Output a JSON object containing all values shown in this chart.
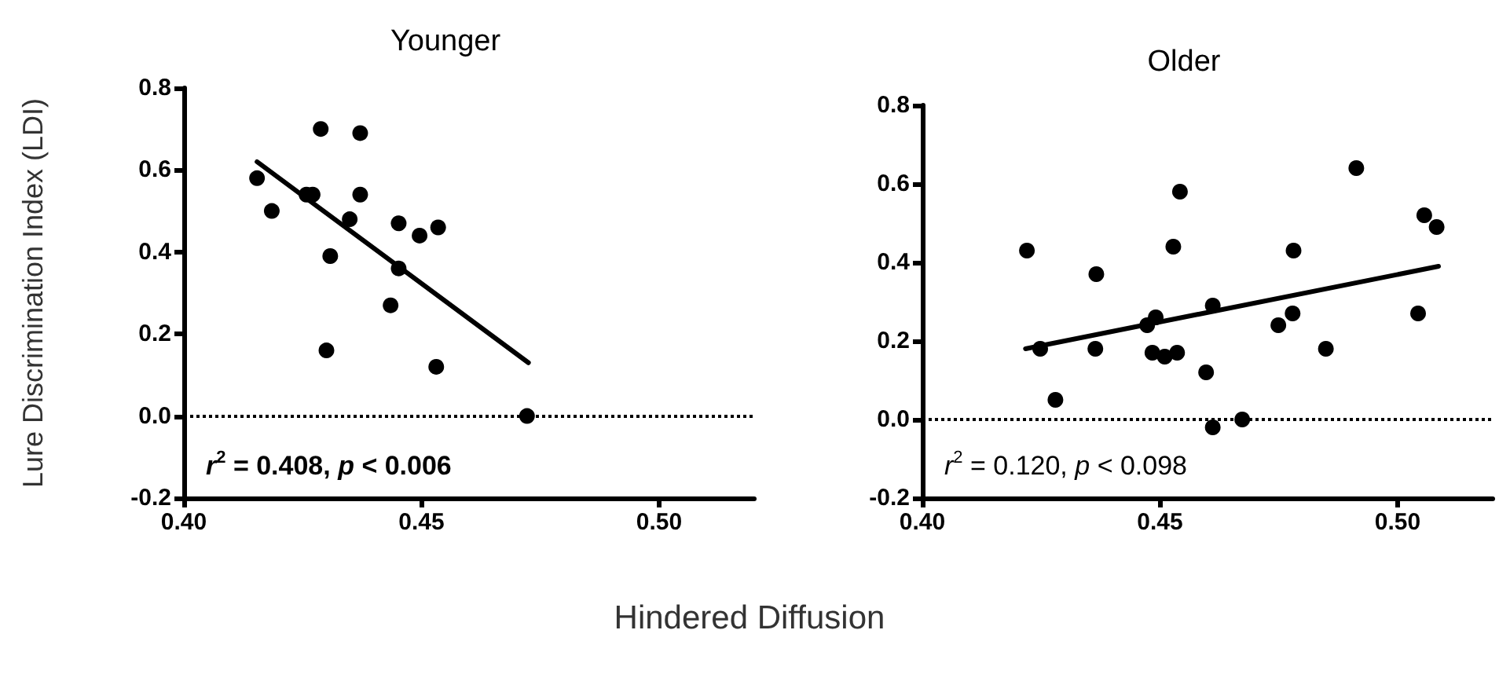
{
  "chart_data": [
    {
      "type": "scatter",
      "title": "Younger",
      "ylabel": "Lure Discrimination Index (LDI)",
      "xlabel": "Hindered Diffusion",
      "annotations": [
        "r$^{2}$ = 0.408, p < 0.006"
      ],
      "series": [
        {
          "color": "#000000",
          "marker": "circle",
          "x": [
            0.4154,
            0.4185,
            0.4258,
            0.4271,
            0.4288,
            0.43,
            0.4308,
            0.4349,
            0.4371,
            0.4371,
            0.4452,
            0.4452,
            0.4435,
            0.4496,
            0.4535,
            0.4531,
            0.4722
          ],
          "values": [
            0.58,
            0.5,
            0.54,
            0.54,
            0.7,
            0.16,
            0.39,
            0.48,
            0.69,
            0.54,
            0.47,
            0.36,
            0.27,
            0.44,
            0.46,
            0.12,
            0.0
          ]
        },
        {
          "type": "line",
          "color": "#000000",
          "marker": "none",
          "line_style": "solid",
          "x": [
            0.4154,
            0.4725
          ],
          "values": [
            0.62,
            0.13
          ]
        }
      ],
      "ref_lines": [
        {
          "axis": "y",
          "value": 0,
          "color": "#000000",
          "line_style": "dotted"
        }
      ],
      "xlim": [
        0.4,
        0.52
      ],
      "xticks": [
        {
          "value": 0.4,
          "label": "0.40"
        },
        {
          "value": 0.45,
          "label": "0.45"
        },
        {
          "value": 0.5,
          "label": "0.50"
        }
      ],
      "ylim": [
        -0.2,
        0.8
      ],
      "yticks": [
        {
          "value": -0.2,
          "label": "-0.2"
        },
        {
          "value": 0,
          "label": "0.0"
        },
        {
          "value": 0.2,
          "label": "0.2"
        },
        {
          "value": 0.4,
          "label": "0.4"
        },
        {
          "value": 0.6,
          "label": "0.6"
        },
        {
          "value": 0.8,
          "label": "0.8"
        }
      ],
      "grid": false
    },
    {
      "type": "scatter",
      "title": "Older",
      "annotations": [
        "r$^{2}$ = 0.120, p < 0.098"
      ],
      "series": [
        {
          "color": "#000000",
          "marker": "circle",
          "x": [
            0.422,
            0.4248,
            0.428,
            0.4366,
            0.4364,
            0.4473,
            0.4491,
            0.4484,
            0.451,
            0.4536,
            0.4528,
            0.4542,
            0.4597,
            0.4611,
            0.4611,
            0.4673,
            0.4749,
            0.4779,
            0.4781,
            0.4849,
            0.4913,
            0.5043,
            0.5056,
            0.5082
          ],
          "values": [
            0.43,
            0.18,
            0.05,
            0.37,
            0.18,
            0.24,
            0.26,
            0.17,
            0.16,
            0.17,
            0.44,
            0.58,
            0.12,
            0.29,
            -0.02,
            0.0,
            0.24,
            0.27,
            0.43,
            0.18,
            0.64,
            0.27,
            0.52,
            0.49
          ]
        },
        {
          "type": "line",
          "color": "#000000",
          "marker": "none",
          "line_style": "solid",
          "x": [
            0.4217,
            0.5086
          ],
          "values": [
            0.18,
            0.39
          ]
        }
      ],
      "ref_lines": [
        {
          "axis": "y",
          "value": 0,
          "color": "#000000",
          "line_style": "dotted"
        }
      ],
      "xlim": [
        0.4,
        0.52
      ],
      "xticks": [
        {
          "value": 0.4,
          "label": "0.40"
        },
        {
          "value": 0.45,
          "label": "0.45"
        },
        {
          "value": 0.5,
          "label": "0.50"
        }
      ],
      "ylim": [
        -0.2,
        0.8
      ],
      "yticks": [
        {
          "value": -0.2,
          "label": "-0.2"
        },
        {
          "value": 0,
          "label": "0.0"
        },
        {
          "value": 0.2,
          "label": "0.2"
        },
        {
          "value": 0.4,
          "label": "0.4"
        },
        {
          "value": 0.6,
          "label": "0.6"
        },
        {
          "value": 0.8,
          "label": "0.8"
        }
      ],
      "grid": false
    }
  ]
}
